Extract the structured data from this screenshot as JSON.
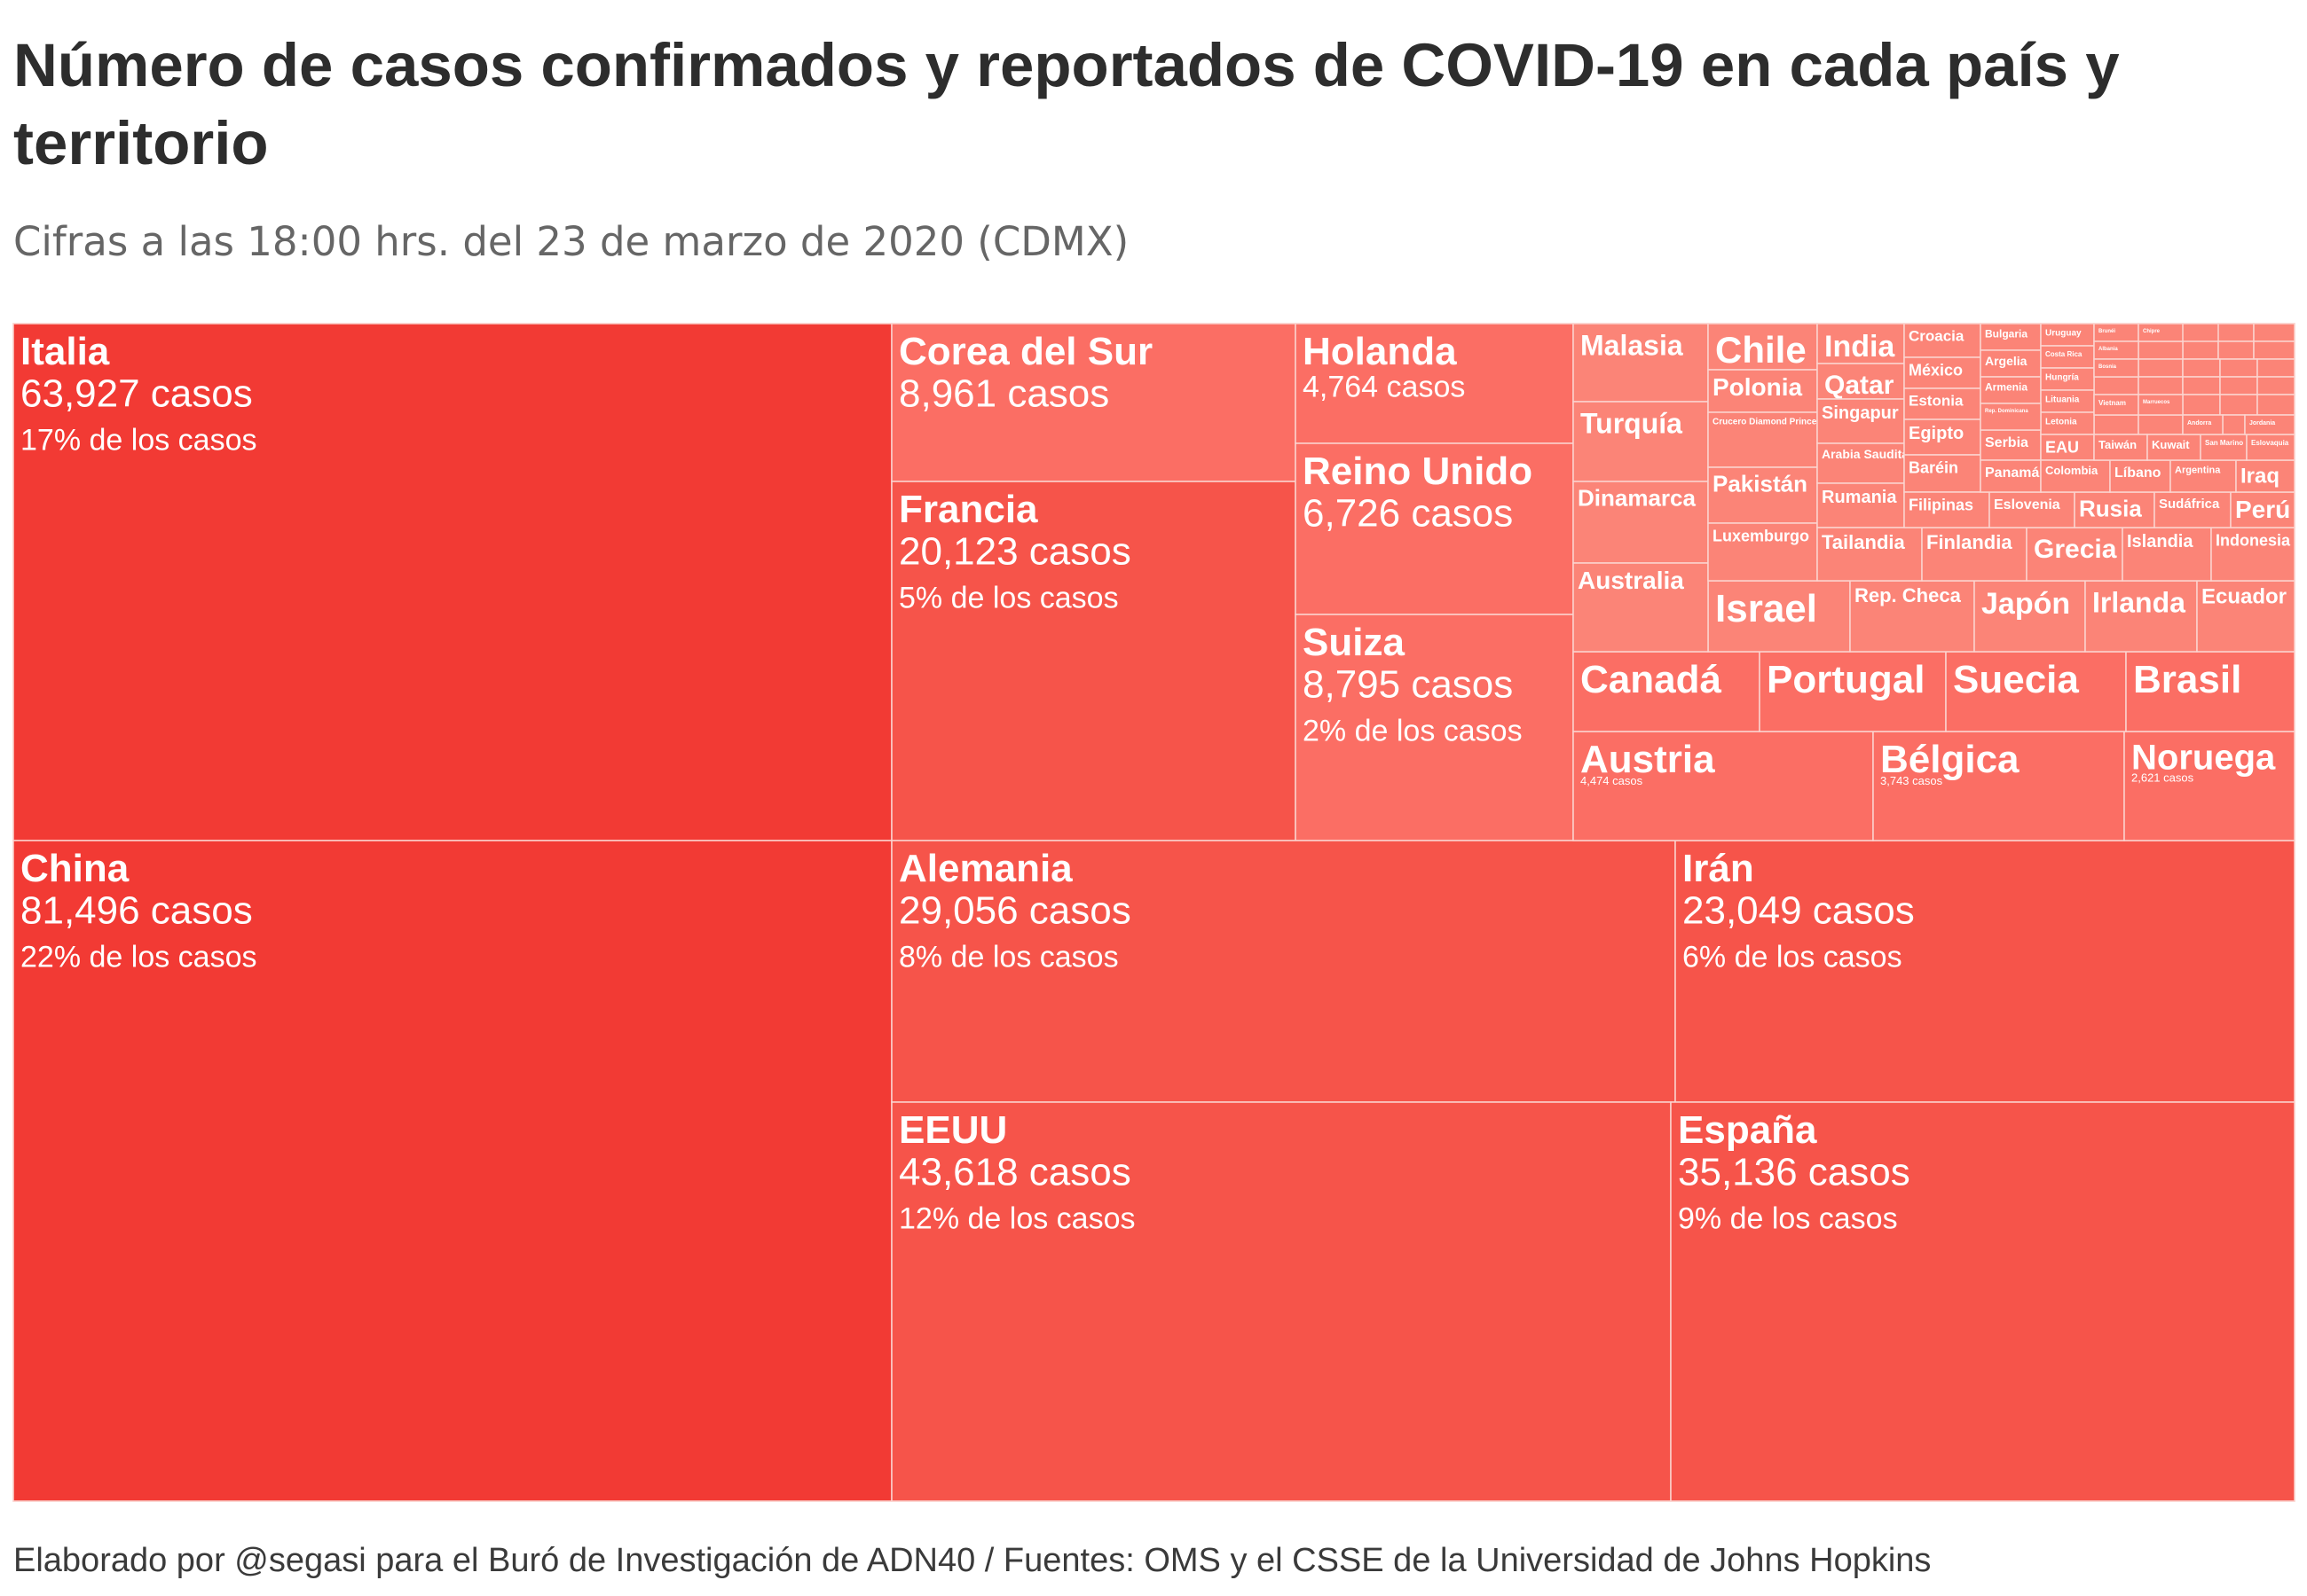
{
  "title": "Número de casos confirmados y reportados de COVID-19 en cada país y territorio",
  "subtitle": "Cifras a las 18:00 hrs. del 23 de marzo de 2020 (CDMX)",
  "source": "Elaborado por @segasi para el Buró de Investigación de ADN40 / Fuentes: OMS y el CSSE de la Universidad de Johns Hopkins",
  "colors": {
    "high": "#f23a34",
    "mid": "#f6544a",
    "low": "#fb6e64",
    "lighter": "#fb8477",
    "border": "#fbd4cf",
    "text": "#ffffff"
  },
  "chart_data": {
    "type": "treemap",
    "value_suffix": " casos",
    "pct_suffix": " de los casos",
    "items": [
      {
        "name": "Italia",
        "value": 63927,
        "value_label": "63,927 casos",
        "pct_label": "17% de los casos"
      },
      {
        "name": "China",
        "value": 81496,
        "value_label": "81,496 casos",
        "pct_label": "22% de los casos"
      },
      {
        "name": "Corea del Sur",
        "value": 8961,
        "value_label": "8,961 casos"
      },
      {
        "name": "Francia",
        "value": 20123,
        "value_label": "20,123 casos",
        "pct_label": "5% de los casos"
      },
      {
        "name": "Holanda",
        "value": 4764,
        "value_label": "4,764 casos"
      },
      {
        "name": "Reino Unido",
        "value": 6726,
        "value_label": "6,726 casos"
      },
      {
        "name": "Suiza",
        "value": 8795,
        "value_label": "8,795 casos",
        "pct_label": "2% de los casos"
      },
      {
        "name": "Alemania",
        "value": 29056,
        "value_label": "29,056 casos",
        "pct_label": "8% de los casos"
      },
      {
        "name": "Irán",
        "value": 23049,
        "value_label": "23,049 casos",
        "pct_label": "6% de los casos"
      },
      {
        "name": "EEUU",
        "value": 43618,
        "value_label": "43,618 casos",
        "pct_label": "12% de los casos"
      },
      {
        "name": "España",
        "value": 35136,
        "value_label": "35,136 casos",
        "pct_label": "9% de los casos"
      },
      {
        "name": "Austria",
        "value": 4474,
        "value_label": "4,474 casos"
      },
      {
        "name": "Bélgica",
        "value": 3743,
        "value_label": "3,743 casos"
      },
      {
        "name": "Noruega",
        "value": 2621,
        "value_label": "2,621 casos"
      },
      {
        "name": "Canadá"
      },
      {
        "name": "Portugal"
      },
      {
        "name": "Suecia"
      },
      {
        "name": "Brasil"
      },
      {
        "name": "Israel"
      },
      {
        "name": "Rep. Checa"
      },
      {
        "name": "Japón"
      },
      {
        "name": "Irlanda"
      },
      {
        "name": "Ecuador"
      },
      {
        "name": "Malasia"
      },
      {
        "name": "Turquía"
      },
      {
        "name": "Dinamarca"
      },
      {
        "name": "Australia"
      },
      {
        "name": "Chile"
      },
      {
        "name": "Polonia"
      },
      {
        "name": "Crucero Diamond Princess"
      },
      {
        "name": "Pakistán"
      },
      {
        "name": "Luxemburgo"
      },
      {
        "name": "India"
      },
      {
        "name": "Qatar"
      },
      {
        "name": "Singapur"
      },
      {
        "name": "Arabia Saudita"
      },
      {
        "name": "Rumania"
      },
      {
        "name": "Tailandia"
      },
      {
        "name": "Finlandia"
      },
      {
        "name": "Grecia"
      },
      {
        "name": "Islandia"
      },
      {
        "name": "Indonesia"
      },
      {
        "name": "Croacia"
      },
      {
        "name": "México"
      },
      {
        "name": "Estonia"
      },
      {
        "name": "Egipto"
      },
      {
        "name": "Baréin"
      },
      {
        "name": "Filipinas"
      },
      {
        "name": "Eslovenia"
      },
      {
        "name": "Rusia"
      },
      {
        "name": "Sudáfrica"
      },
      {
        "name": "Perú"
      },
      {
        "name": "Bulgaria"
      },
      {
        "name": "Argelia"
      },
      {
        "name": "Armenia"
      },
      {
        "name": "Serbia"
      },
      {
        "name": "Panamá"
      },
      {
        "name": "Uruguay"
      },
      {
        "name": "Costa Rica"
      },
      {
        "name": "Hungría"
      },
      {
        "name": "Lituania"
      },
      {
        "name": "Letonia"
      },
      {
        "name": "EAU"
      },
      {
        "name": "Colombia"
      },
      {
        "name": "Líbano"
      },
      {
        "name": "Argentina"
      },
      {
        "name": "Iraq"
      },
      {
        "name": "Taiwán"
      },
      {
        "name": "Kuwait"
      },
      {
        "name": "Vietnam"
      },
      {
        "name": "San Marino"
      },
      {
        "name": "Eslovaquia"
      },
      {
        "name": "Rep. Dominicana"
      },
      {
        "name": "Marruecos"
      },
      {
        "name": "Andorra"
      },
      {
        "name": "Jordania"
      },
      {
        "name": "Brunéi"
      },
      {
        "name": "Chipre"
      },
      {
        "name": "Albania"
      },
      {
        "name": "Bosnia"
      }
    ]
  }
}
